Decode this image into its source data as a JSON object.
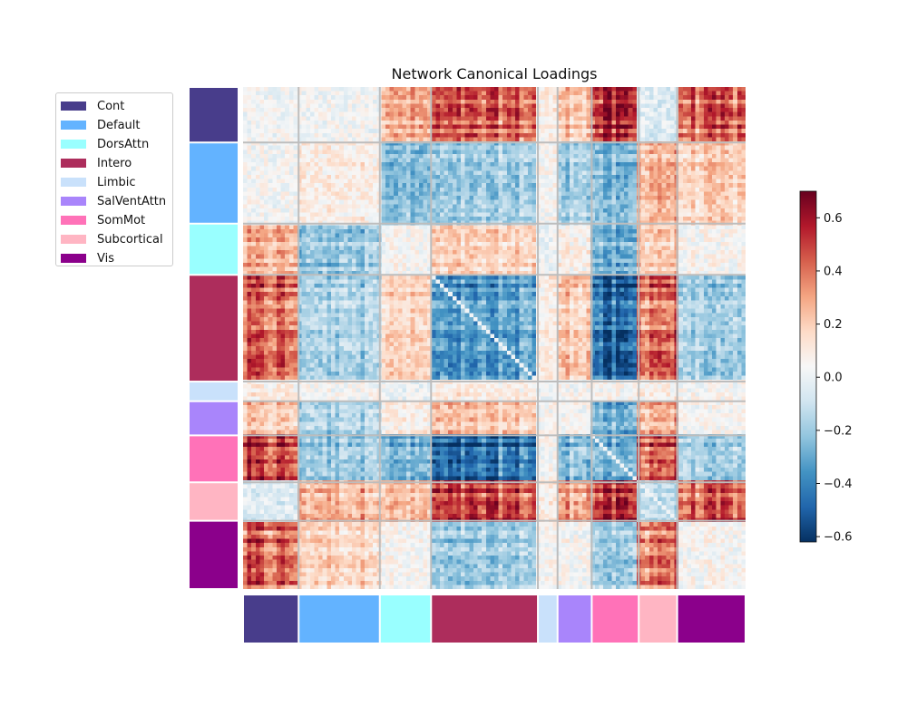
{
  "chart_data": {
    "type": "heatmap",
    "title": "Network Canonical Loadings",
    "networks": [
      {
        "name": "Cont",
        "color": "#483d8b",
        "weight": 65
      },
      {
        "name": "Default",
        "color": "#63b3ff",
        "weight": 95
      },
      {
        "name": "DorsAttn",
        "color": "#99ffff",
        "weight": 60
      },
      {
        "name": "Intero",
        "color": "#ad2d5c",
        "weight": 125
      },
      {
        "name": "Limbic",
        "color": "#c9e1fb",
        "weight": 23
      },
      {
        "name": "SalVentAttn",
        "color": "#a985fb",
        "weight": 40
      },
      {
        "name": "SomMot",
        "color": "#ff72b8",
        "weight": 55
      },
      {
        "name": "Subcortical",
        "color": "#ffb5c3",
        "weight": 45
      },
      {
        "name": "Vis",
        "color": "#8b008b",
        "weight": 80
      }
    ],
    "block_means": [
      [
        0.02,
        0.03,
        0.3,
        0.45,
        0.1,
        0.25,
        0.55,
        -0.05,
        0.45
      ],
      [
        0.03,
        0.1,
        -0.25,
        -0.2,
        0.05,
        -0.2,
        -0.25,
        0.3,
        0.2
      ],
      [
        0.3,
        -0.25,
        0.05,
        0.2,
        0.0,
        0.1,
        -0.3,
        0.25,
        0.05
      ],
      [
        0.45,
        -0.2,
        0.2,
        -0.35,
        0.1,
        0.25,
        -0.5,
        0.5,
        -0.2
      ],
      [
        0.1,
        0.05,
        0.0,
        0.1,
        0.02,
        0.05,
        0.05,
        0.1,
        0.05
      ],
      [
        0.25,
        -0.2,
        0.1,
        0.25,
        0.05,
        0.05,
        -0.3,
        0.35,
        0.05
      ],
      [
        0.55,
        -0.25,
        -0.3,
        -0.5,
        0.05,
        -0.3,
        -0.3,
        0.55,
        -0.2
      ],
      [
        -0.05,
        0.3,
        0.25,
        0.5,
        0.1,
        0.35,
        0.55,
        -0.15,
        0.45
      ],
      [
        0.45,
        0.2,
        0.05,
        -0.2,
        0.05,
        0.05,
        -0.2,
        0.45,
        0.05
      ]
    ],
    "colorbar": {
      "vmin": -0.62,
      "vmax": 0.7,
      "ticks": [
        "0.6",
        "0.4",
        "0.2",
        "0.0",
        "−0.2",
        "−0.4",
        "−0.6"
      ],
      "tick_values": [
        0.6,
        0.4,
        0.2,
        0.0,
        -0.2,
        -0.4,
        -0.6
      ],
      "colormap": "RdBu_r"
    },
    "legend_placement": "upper-left"
  }
}
